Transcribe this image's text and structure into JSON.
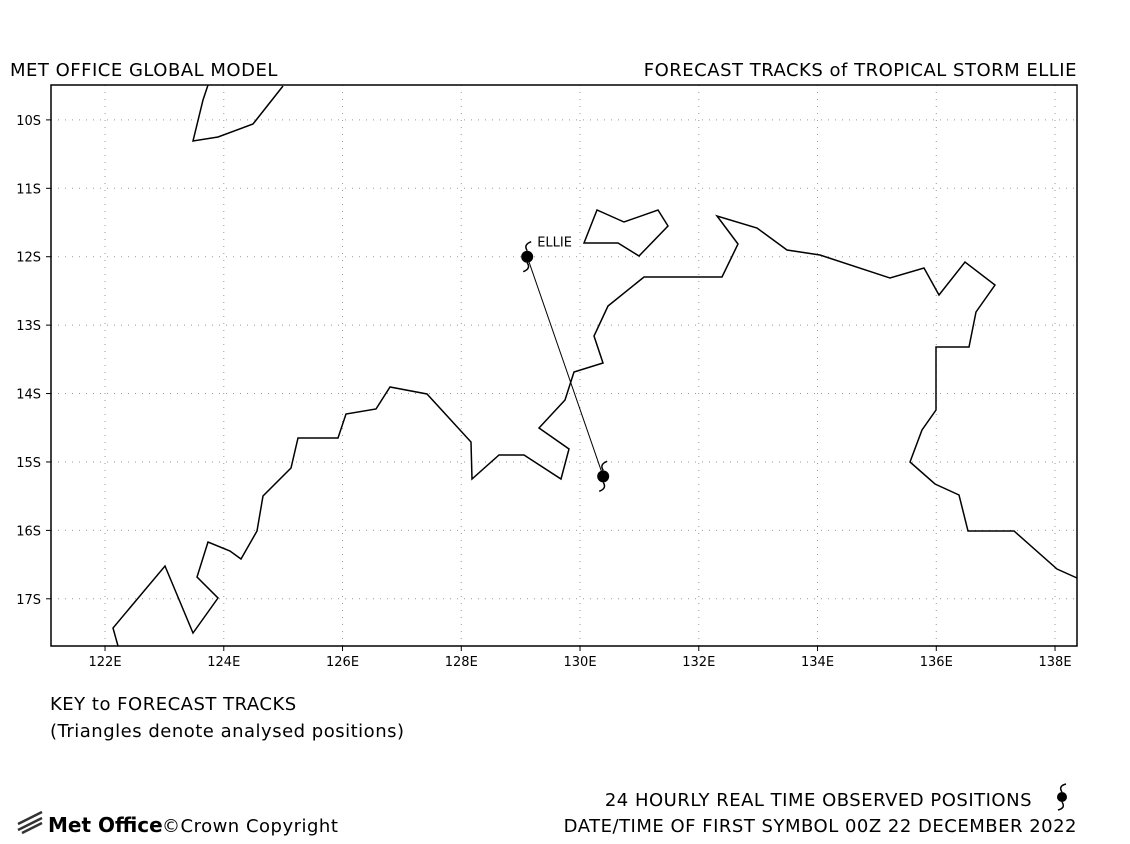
{
  "header": {
    "left": "MET OFFICE GLOBAL MODEL",
    "right": "FORECAST TRACKS of TROPICAL STORM ELLIE"
  },
  "map": {
    "xlim": [
      121.09,
      138.37
    ],
    "ylim": [
      -17.69,
      -9.49
    ],
    "xticks": [
      {
        "value": 122,
        "label": "122E"
      },
      {
        "value": 124,
        "label": "124E"
      },
      {
        "value": 126,
        "label": "126E"
      },
      {
        "value": 128,
        "label": "128E"
      },
      {
        "value": 130,
        "label": "130E"
      },
      {
        "value": 132,
        "label": "132E"
      },
      {
        "value": 134,
        "label": "134E"
      },
      {
        "value": 136,
        "label": "136E"
      },
      {
        "value": 138,
        "label": "138E"
      }
    ],
    "yticks": [
      {
        "value": -10,
        "label": "10S"
      },
      {
        "value": -11,
        "label": "11S"
      },
      {
        "value": -12,
        "label": "12S"
      },
      {
        "value": -13,
        "label": "13S"
      },
      {
        "value": -14,
        "label": "14S"
      },
      {
        "value": -15,
        "label": "15S"
      },
      {
        "value": -16,
        "label": "16S"
      },
      {
        "value": -17,
        "label": "17S"
      }
    ],
    "track": {
      "name": "ELLIE",
      "lon": [
        129.11,
        130.39
      ],
      "lat": [
        -12.0,
        -15.21
      ]
    }
  },
  "key": {
    "title": "KEY to FORECAST TRACKS",
    "subtitle": "(Triangles denote analysed positions)"
  },
  "footer": {
    "observed": "24 HOURLY REAL TIME OBSERVED POSITIONS",
    "datetime": "DATE/TIME OF FIRST SYMBOL 00Z 22 DECEMBER 2022",
    "logo": "Met Office",
    "copyright": "©Crown Copyright"
  }
}
